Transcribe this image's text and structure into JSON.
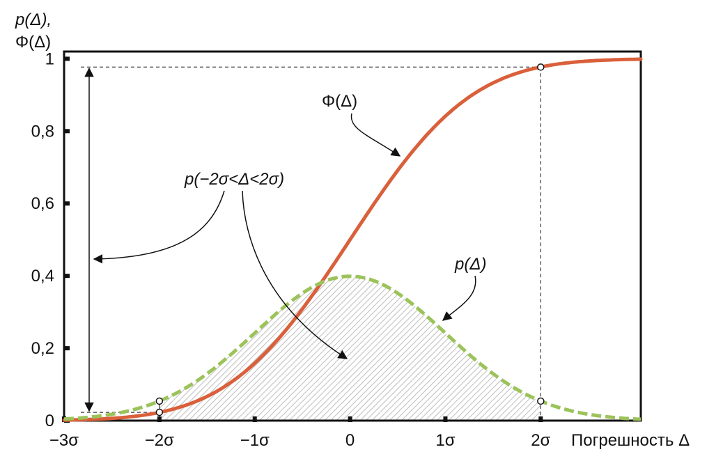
{
  "chart_data": {
    "type": "line",
    "ylabel_line1": "p(Δ),",
    "ylabel_line2": "Φ(Δ)",
    "xlabel": "Погрешность Δ",
    "x_ticks": [
      "−3σ",
      "−2σ",
      "−1σ",
      "0",
      "1σ",
      "2σ"
    ],
    "x_tick_values": [
      -3,
      -2,
      -1,
      0,
      1,
      2
    ],
    "y_ticks": [
      "0",
      "0,2",
      "0,4",
      "0,6",
      "0,8",
      "1"
    ],
    "y_tick_values": [
      0,
      0.2,
      0.4,
      0.6,
      0.8,
      1.0
    ],
    "xlim": [
      -3,
      3.05
    ],
    "ylim": [
      0,
      1.02
    ],
    "grid": false,
    "series": [
      {
        "name": "Φ(Δ)",
        "kind": "normal-cdf",
        "color": "#d9603b",
        "style": "solid",
        "x": [
          -3,
          -2.5,
          -2,
          -1.5,
          -1,
          -0.5,
          0,
          0.5,
          1,
          1.5,
          2,
          2.5,
          3
        ],
        "y": [
          0.001,
          0.006,
          0.023,
          0.067,
          0.159,
          0.309,
          0.5,
          0.691,
          0.841,
          0.933,
          0.977,
          0.994,
          0.999
        ]
      },
      {
        "name": "p(Δ)",
        "kind": "normal-pdf",
        "color": "#9bc35a",
        "style": "dashed",
        "x": [
          -3,
          -2.5,
          -2,
          -1.5,
          -1,
          -0.5,
          0,
          0.5,
          1,
          1.5,
          2,
          2.5,
          3
        ],
        "y": [
          0.004,
          0.018,
          0.054,
          0.13,
          0.242,
          0.352,
          0.399,
          0.352,
          0.242,
          0.13,
          0.054,
          0.018,
          0.004
        ]
      }
    ],
    "shaded_region": {
      "label": "p(−2σ<Δ<2σ)",
      "from": -2,
      "to": 2,
      "fill": "hatched-gray"
    },
    "annotations": [
      {
        "text": "Φ(Δ)",
        "target": "Φ(Δ)"
      },
      {
        "text": "p(−2σ<Δ<2σ)",
        "target": "interval and shaded area"
      },
      {
        "text": "p(Δ)",
        "target": "p(Δ)"
      }
    ],
    "marked_points": [
      {
        "x": -2,
        "y": 0.023,
        "series": "Φ(Δ)"
      },
      {
        "x": -2,
        "y": 0.054,
        "series": "p(Δ)"
      },
      {
        "x": 2,
        "y": 0.977,
        "series": "Φ(Δ)"
      },
      {
        "x": 2,
        "y": 0.054,
        "series": "p(Δ)"
      }
    ],
    "colors": {
      "cdf": "#d9603b",
      "pdf": "#9bc35a",
      "hatch": "#bdbdbd",
      "axis": "#111111"
    }
  }
}
